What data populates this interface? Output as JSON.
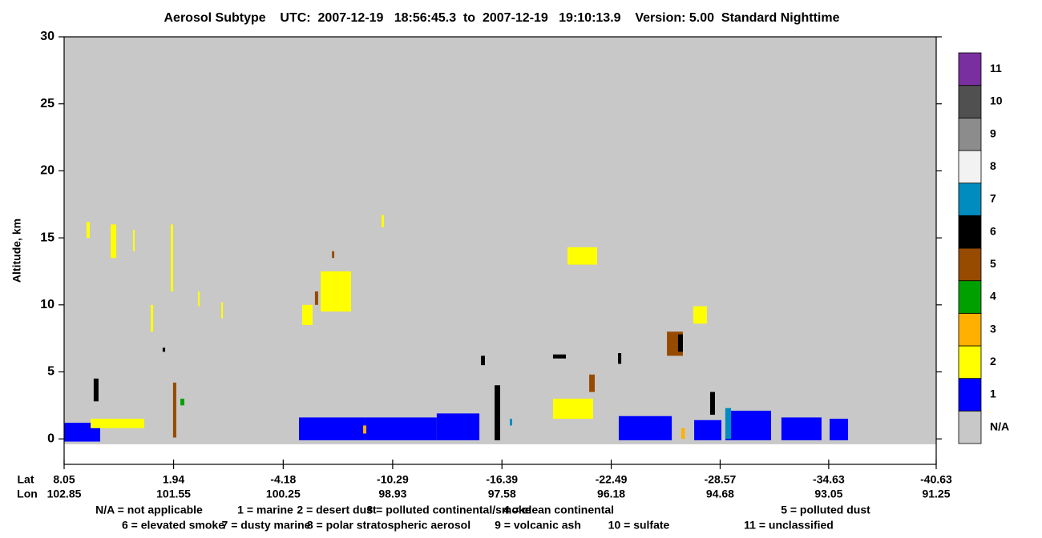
{
  "chart_data": {
    "type": "curtain",
    "title": "Aerosol Subtype    UTC:  2007-12-19   18:56:45.3  to  2007-12-19   19:10:13.9    Version: 5.00  Standard Nighttime",
    "ylabel": "Altitude, km",
    "xlim": [
      8.05,
      -40.63
    ],
    "ylim": [
      -1.9,
      30
    ],
    "xticks": [
      8.05,
      1.94,
      -4.18,
      -10.29,
      -16.39,
      -22.49,
      -28.57,
      -34.63,
      -40.63
    ],
    "lon_labels": [
      102.85,
      101.55,
      100.25,
      98.93,
      97.58,
      96.18,
      94.68,
      93.05,
      91.25
    ],
    "lat_row_label": "Lat",
    "lon_row_label": "Lon",
    "yticks": [
      0,
      5,
      10,
      15,
      20,
      25,
      30
    ],
    "classes": [
      {
        "label": "N/A",
        "color": "#c8c8c8"
      },
      {
        "label": 1,
        "color": "#0000ff"
      },
      {
        "label": 2,
        "color": "#ffff00"
      },
      {
        "label": 3,
        "color": "#ffb000"
      },
      {
        "label": 4,
        "color": "#00a000"
      },
      {
        "label": 5,
        "color": "#964b00"
      },
      {
        "label": 6,
        "color": "#000000"
      },
      {
        "label": 7,
        "color": "#008cbe"
      },
      {
        "label": 8,
        "color": "#f2f2f2"
      },
      {
        "label": 9,
        "color": "#8c8c8c"
      },
      {
        "label": 10,
        "color": "#505050"
      },
      {
        "label": 11,
        "color": "#7a2fa0"
      }
    ],
    "features": [
      {
        "class": 0,
        "lat": [
          8.05,
          -40.63
        ],
        "alt": [
          -0.4,
          30
        ]
      },
      {
        "class": 1,
        "lat": [
          8.05,
          6.04
        ],
        "alt": [
          -0.2,
          1.2
        ]
      },
      {
        "class": 1,
        "lat": [
          -5.06,
          -8.73
        ],
        "alt": [
          -0.1,
          1.6
        ]
      },
      {
        "class": 1,
        "lat": [
          -8.73,
          -12.75
        ],
        "alt": [
          -0.1,
          1.6
        ]
      },
      {
        "class": 1,
        "lat": [
          -12.75,
          -15.13
        ],
        "alt": [
          -0.1,
          1.9
        ]
      },
      {
        "class": 1,
        "lat": [
          -22.91,
          -25.87
        ],
        "alt": [
          -0.1,
          1.7
        ]
      },
      {
        "class": 1,
        "lat": [
          -27.12,
          -28.64
        ],
        "alt": [
          -0.1,
          1.4
        ]
      },
      {
        "class": 1,
        "lat": [
          -28.86,
          -31.41
        ],
        "alt": [
          -0.1,
          2.1
        ]
      },
      {
        "class": 1,
        "lat": [
          -31.99,
          -34.23
        ],
        "alt": [
          -0.1,
          1.6
        ]
      },
      {
        "class": 1,
        "lat": [
          -34.68,
          -35.71
        ],
        "alt": [
          -0.1,
          1.5
        ]
      },
      {
        "class": 2,
        "lat": [
          6.8,
          6.62
        ],
        "alt": [
          15,
          16.2
        ]
      },
      {
        "class": 2,
        "lat": [
          5.45,
          5.14
        ],
        "alt": [
          13.5,
          16
        ]
      },
      {
        "class": 2,
        "lat": [
          4.2,
          4.11
        ],
        "alt": [
          14,
          15.6
        ]
      },
      {
        "class": 2,
        "lat": [
          3.22,
          3.08
        ],
        "alt": [
          8,
          10
        ]
      },
      {
        "class": 2,
        "lat": [
          2.1,
          1.97
        ],
        "alt": [
          11,
          16
        ]
      },
      {
        "class": 2,
        "lat": [
          0.58,
          0.49
        ],
        "alt": [
          9.9,
          11
        ]
      },
      {
        "class": 2,
        "lat": [
          -0.72,
          -0.81
        ],
        "alt": [
          9,
          10.2
        ]
      },
      {
        "class": 2,
        "lat": [
          -5.24,
          -5.82
        ],
        "alt": [
          8.5,
          10
        ]
      },
      {
        "class": 2,
        "lat": [
          -6.27,
          -7.97
        ],
        "alt": [
          9.5,
          12.5
        ]
      },
      {
        "class": 2,
        "lat": [
          -9.67,
          -9.8
        ],
        "alt": [
          15.8,
          16.7
        ]
      },
      {
        "class": 2,
        "lat": [
          -20.05,
          -21.7
        ],
        "alt": [
          13,
          14.3
        ]
      },
      {
        "class": 2,
        "lat": [
          -27.07,
          -27.83
        ],
        "alt": [
          8.6,
          9.9
        ]
      },
      {
        "class": 2,
        "lat": [
          -19.24,
          -21.48
        ],
        "alt": [
          1.5,
          3
        ]
      },
      {
        "class": 2,
        "lat": [
          6.57,
          3.58
        ],
        "alt": [
          0.8,
          1.5
        ]
      },
      {
        "class": 3,
        "lat": [
          -26.4,
          -26.6
        ],
        "alt": [
          0,
          0.8
        ]
      },
      {
        "class": 3,
        "lat": [
          -8.64,
          -8.82
        ],
        "alt": [
          0.4,
          1
        ]
      },
      {
        "class": 4,
        "lat": [
          1.56,
          1.34
        ],
        "alt": [
          2.5,
          3
        ]
      },
      {
        "class": 5,
        "lat": [
          1.97,
          1.79
        ],
        "alt": [
          0.1,
          4.2
        ]
      },
      {
        "class": 5,
        "lat": [
          -25.6,
          -26.49
        ],
        "alt": [
          6.2,
          8
        ]
      },
      {
        "class": 5,
        "lat": [
          -5.95,
          -6.13
        ],
        "alt": [
          10,
          11
        ]
      },
      {
        "class": 5,
        "lat": [
          -6.9,
          -7.03
        ],
        "alt": [
          13.5,
          14
        ]
      },
      {
        "class": 5,
        "lat": [
          -21.26,
          -21.57
        ],
        "alt": [
          3.5,
          4.8
        ]
      },
      {
        "class": 6,
        "lat": [
          6.4,
          6.13
        ],
        "alt": [
          2.8,
          4.5
        ]
      },
      {
        "class": 6,
        "lat": [
          -15.98,
          -16.29
        ],
        "alt": [
          -0.1,
          4
        ]
      },
      {
        "class": 6,
        "lat": [
          -19.24,
          -19.96
        ],
        "alt": [
          6,
          6.3
        ]
      },
      {
        "class": 6,
        "lat": [
          -26.22,
          -26.49
        ],
        "alt": [
          6.5,
          7.8
        ]
      },
      {
        "class": 6,
        "lat": [
          -28.01,
          -28.28
        ],
        "alt": [
          1.8,
          3.5
        ]
      },
      {
        "class": 6,
        "lat": [
          -15.22,
          -15.44
        ],
        "alt": [
          5.5,
          6.2
        ]
      },
      {
        "class": 6,
        "lat": [
          2.55,
          2.41
        ],
        "alt": [
          6.5,
          6.8
        ]
      },
      {
        "class": 6,
        "lat": [
          -22.87,
          -23.05
        ],
        "alt": [
          5.6,
          6.4
        ]
      },
      {
        "class": 7,
        "lat": [
          -28.86,
          -29.18
        ],
        "alt": [
          0,
          2.3
        ]
      },
      {
        "class": 7,
        "lat": [
          -16.83,
          -16.96
        ],
        "alt": [
          1,
          1.5
        ]
      }
    ],
    "class_descriptions": [
      [
        "N/A = not applicable",
        "1 = marine",
        "2 = desert dust",
        "3 = polluted continental/smoke",
        "4 = clean continental",
        "5 = polluted dust"
      ],
      [
        "6 = elevated smoke",
        "7 = dusty marine",
        "8 = polar stratospheric aerosol",
        "9 = volcanic ash",
        "10 = sulfate",
        "11 = unclassified"
      ]
    ]
  }
}
